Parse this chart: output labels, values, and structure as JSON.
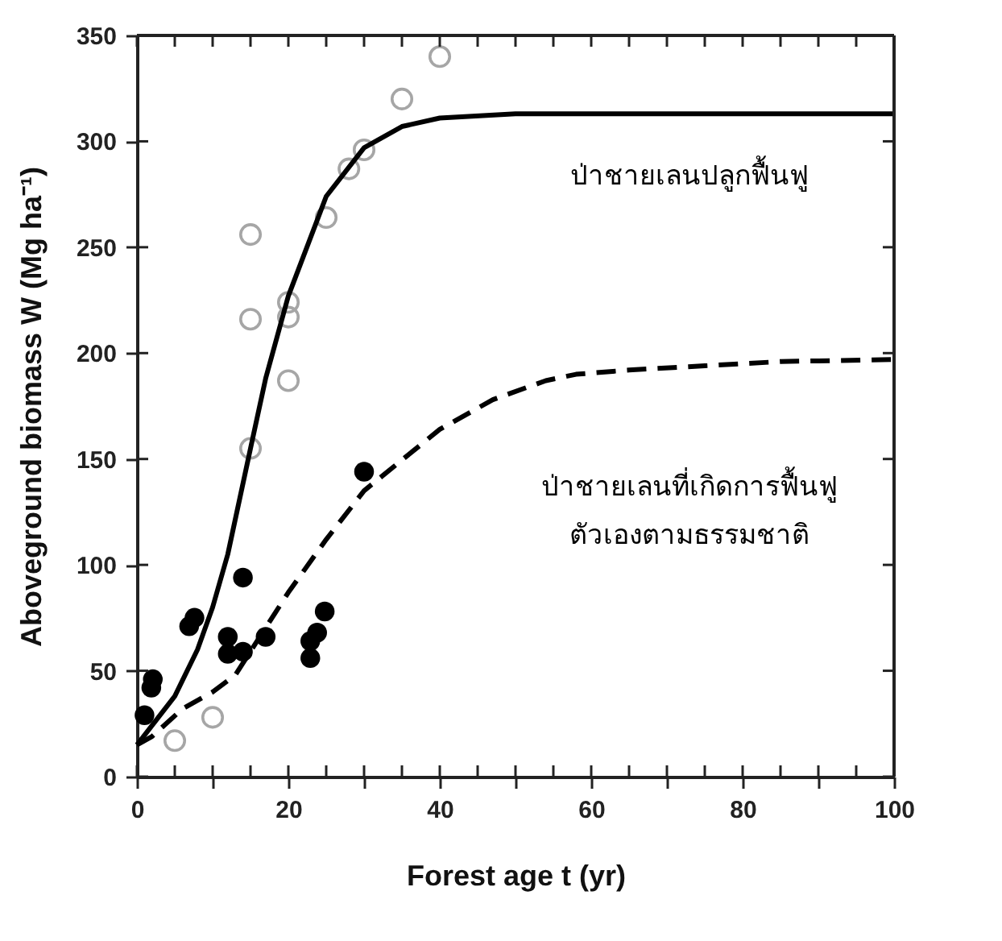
{
  "chart_data": {
    "type": "scatter",
    "xlabel": "Forest age  t  (yr)",
    "ylabel": "Aboveground biomass  W  (Mg ha⁻¹)",
    "xlim": [
      0,
      100
    ],
    "ylim": [
      0,
      350
    ],
    "xticks": [
      0,
      {
        "value": 5,
        "label": null
      },
      {
        "value": 10,
        "label": null
      },
      {
        "value": 15,
        "label": null
      },
      20,
      {
        "value": 25,
        "label": null
      },
      {
        "value": 30,
        "label": null
      },
      {
        "value": 35,
        "label": null
      },
      40,
      {
        "value": 45,
        "label": null
      },
      {
        "value": 50,
        "label": null
      },
      {
        "value": 55,
        "label": null
      },
      60,
      {
        "value": 65,
        "label": null
      },
      {
        "value": 70,
        "label": null
      },
      {
        "value": 75,
        "label": null
      },
      80,
      {
        "value": 85,
        "label": null
      },
      {
        "value": 90,
        "label": null
      },
      {
        "value": 95,
        "label": null
      },
      100
    ],
    "yticks": [
      0,
      50,
      100,
      150,
      200,
      250,
      300,
      350
    ],
    "grid": false,
    "series": [
      {
        "marker": "circle",
        "color": "#a6a6a6",
        "x": [
          40,
          35,
          30,
          28,
          25,
          15,
          15,
          20,
          20,
          20,
          15,
          10,
          5
        ],
        "values": [
          340,
          320,
          296,
          287,
          264,
          256,
          216,
          224,
          217,
          187,
          155,
          28,
          17
        ]
      },
      {
        "marker": "circle",
        "color": "#000000",
        "x": [
          30,
          14,
          7.6,
          6.9,
          12,
          12,
          14,
          17,
          24.8,
          23.8,
          22.9,
          22.9,
          2.1,
          1.9,
          1
        ],
        "values": [
          144,
          94,
          75,
          71,
          66,
          58,
          59,
          66,
          78,
          68,
          64,
          56,
          46,
          42,
          29
        ]
      },
      {
        "type": "line",
        "color": "#000000",
        "line_style": "solid",
        "x": [
          0,
          5,
          8,
          10,
          12,
          15,
          17,
          20,
          25,
          30,
          35,
          40,
          50,
          60,
          100
        ],
        "values": [
          15,
          38,
          60,
          80,
          105,
          155,
          188,
          227,
          274,
          297,
          307,
          311,
          313,
          313,
          313
        ]
      },
      {
        "type": "line",
        "color": "#000000",
        "line_style": "dashed",
        "x": [
          0,
          2,
          6,
          10,
          13,
          20,
          25,
          30,
          40,
          47,
          54,
          58,
          65,
          75,
          85,
          100
        ],
        "values": [
          15,
          19,
          32,
          40,
          48,
          87,
          112,
          135,
          164,
          178,
          187,
          190,
          192,
          194,
          196,
          197
        ]
      }
    ],
    "annotations": [
      "ป่าชายเลนปลูกฟื้นฟู",
      "ป่าชายเลนที่เกิดการฟื้นฟู\nตัวเองตามธรรมชาติ"
    ]
  }
}
